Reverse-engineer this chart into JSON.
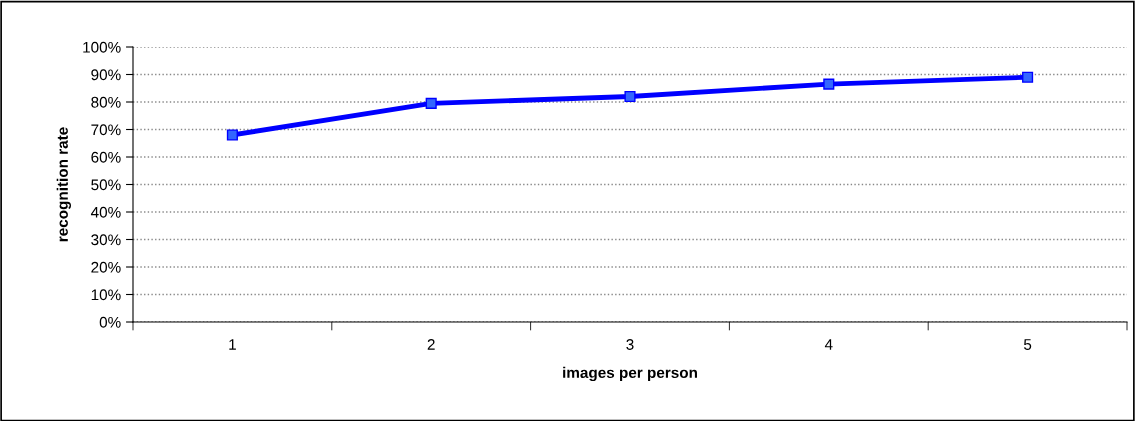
{
  "chart_data": {
    "type": "line",
    "xlabel": "images per person",
    "ylabel": "recognition rate",
    "categories": [
      "1",
      "2",
      "3",
      "4",
      "5"
    ],
    "series": [
      {
        "color": "#0000ff",
        "values": [
          68,
          79.5,
          82,
          86.5,
          89
        ]
      }
    ],
    "marker": "square",
    "line_style": "solid",
    "ylim": [
      0,
      100
    ],
    "yticks": [
      {
        "value": 0,
        "label": "0%"
      },
      {
        "value": 10,
        "label": "10%"
      },
      {
        "value": 20,
        "label": "20%"
      },
      {
        "value": 30,
        "label": "30%"
      },
      {
        "value": 40,
        "label": "40%"
      },
      {
        "value": 50,
        "label": "50%"
      },
      {
        "value": 60,
        "label": "60%"
      },
      {
        "value": 70,
        "label": "70%"
      },
      {
        "value": 80,
        "label": "80%"
      },
      {
        "value": 90,
        "label": "90%"
      },
      {
        "value": 100,
        "label": "100%"
      }
    ],
    "grid": "y"
  }
}
